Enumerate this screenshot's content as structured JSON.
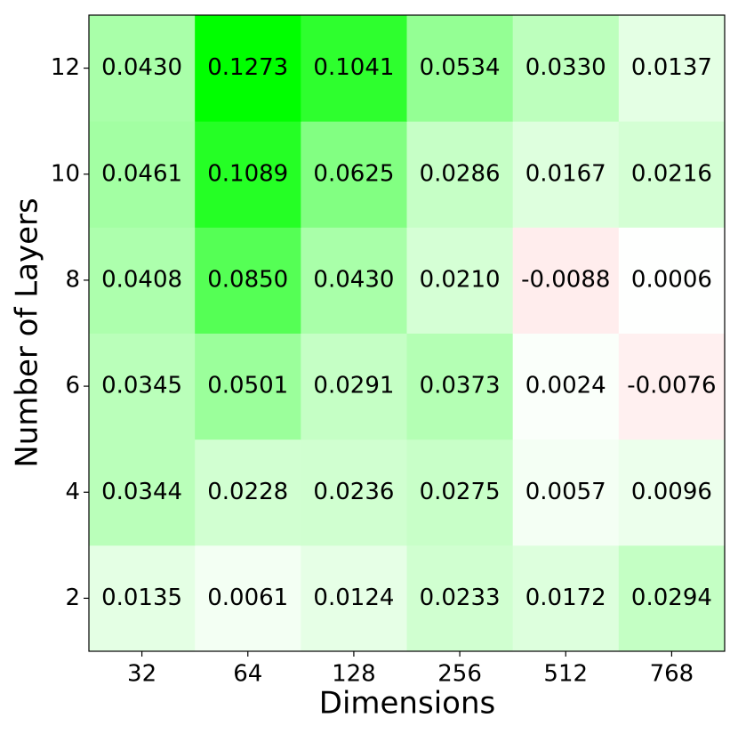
{
  "chart_data": {
    "type": "heatmap",
    "x_label": "Dimensions",
    "y_label": "Number of Layers",
    "x_categories": [
      "32",
      "64",
      "128",
      "256",
      "512",
      "768"
    ],
    "y_categories": [
      "2",
      "4",
      "6",
      "8",
      "10",
      "12"
    ],
    "values": [
      [
        0.0135,
        0.0061,
        0.0124,
        0.0233,
        0.0172,
        0.0294
      ],
      [
        0.0344,
        0.0228,
        0.0236,
        0.0275,
        0.0057,
        0.0096
      ],
      [
        0.0345,
        0.0501,
        0.0291,
        0.0373,
        0.0024,
        -0.0076
      ],
      [
        0.0408,
        0.085,
        0.043,
        0.021,
        -0.0088,
        0.0006
      ],
      [
        0.0461,
        0.1089,
        0.0625,
        0.0286,
        0.0167,
        0.0216
      ],
      [
        0.043,
        0.1273,
        0.1041,
        0.0534,
        0.033,
        0.0137
      ]
    ],
    "value_labels": [
      [
        "0.0135",
        "0.0061",
        "0.0124",
        "0.0233",
        "0.0172",
        "0.0294"
      ],
      [
        "0.0344",
        "0.0228",
        "0.0236",
        "0.0275",
        "0.0057",
        "0.0096"
      ],
      [
        "0.0345",
        "0.0501",
        "0.0291",
        "0.0373",
        "0.0024",
        "-0.0076"
      ],
      [
        "0.0408",
        "0.0850",
        "0.0430",
        "0.0210",
        "-0.0088",
        "0.0006"
      ],
      [
        "0.0461",
        "0.1089",
        "0.0625",
        "0.0286",
        "0.0167",
        "0.0216"
      ],
      [
        "0.0430",
        "0.1273",
        "0.1041",
        "0.0534",
        "0.0330",
        "0.0137"
      ]
    ],
    "clim": [
      -0.1273,
      0.1273
    ],
    "color_low": "#ff0000",
    "color_mid": "#ffffff",
    "color_high": "#00ff00"
  }
}
